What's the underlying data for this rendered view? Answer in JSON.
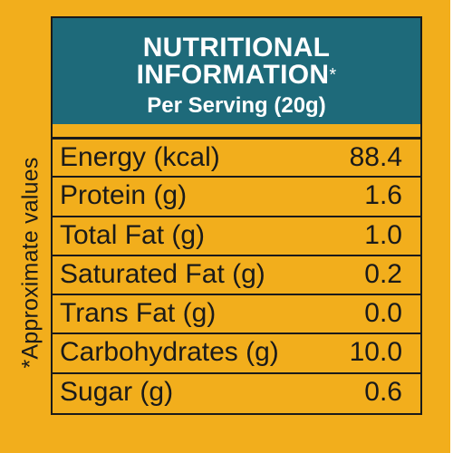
{
  "label": {
    "title_line1": "NUTRITIONAL",
    "title_line2": "INFORMATION",
    "title_asterisk": "*",
    "serving": "Per Serving (20g)",
    "side_note": "*Approximate values",
    "rows": [
      {
        "nutrient": "Energy (kcal)",
        "value": "88.4"
      },
      {
        "nutrient": "Protein (g)",
        "value": "1.6"
      },
      {
        "nutrient": "Total Fat (g)",
        "value": "1.0"
      },
      {
        "nutrient": "Saturated Fat (g)",
        "value": "0.2"
      },
      {
        "nutrient": "Trans Fat (g)",
        "value": "0.0"
      },
      {
        "nutrient": "Carbohydrates (g)",
        "value": "10.0"
      },
      {
        "nutrient": "Sugar (g)",
        "value": "0.6"
      }
    ]
  },
  "colors": {
    "background": "#f2ae1c",
    "header": "#1e6a7a",
    "text": "#1a1a1a",
    "header_text": "#ffffff"
  }
}
